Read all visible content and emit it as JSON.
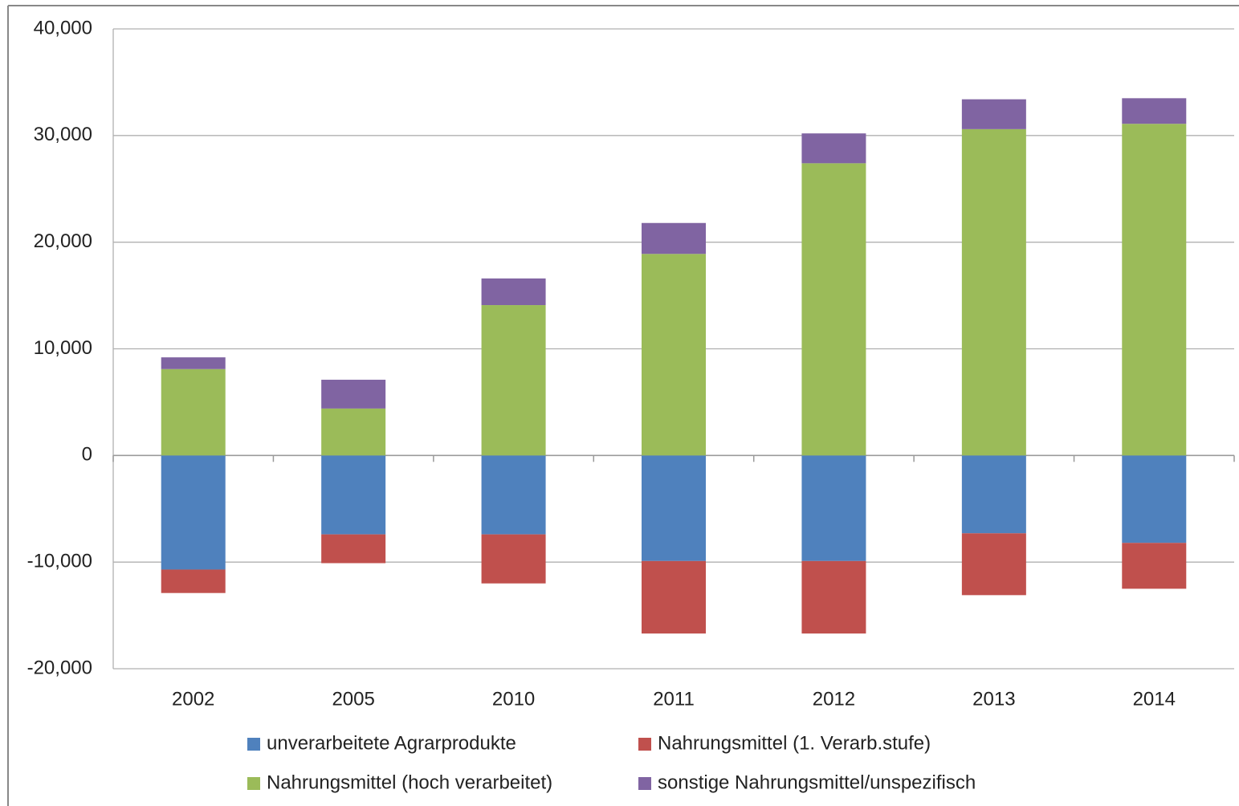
{
  "chart_data": {
    "type": "stacked_bar",
    "categories": [
      "2002",
      "2005",
      "2010",
      "2011",
      "2012",
      "2013",
      "2014"
    ],
    "series": [
      {
        "name": "unverarbeitete Agrarprodukte",
        "color": "#4f81bd",
        "values": [
          -10700,
          -7400,
          -7400,
          -9900,
          -9900,
          -7300,
          -8200
        ]
      },
      {
        "name": "Nahrungsmittel (1. Verarb.stufe)",
        "color": "#c0504d",
        "values": [
          -2200,
          -2700,
          -4600,
          -6800,
          -6800,
          -5800,
          -4300
        ]
      },
      {
        "name": "Nahrungsmittel (hoch verarbeitet)",
        "color": "#9bbb59",
        "values": [
          8100,
          4400,
          14100,
          18900,
          27400,
          30600,
          31100
        ]
      },
      {
        "name": "sonstige Nahrungsmittel/unspezifisch",
        "color": "#8064a2",
        "values": [
          1100,
          2700,
          2500,
          2900,
          2800,
          2800,
          2400
        ]
      }
    ],
    "ylim": [
      -20000,
      40000
    ],
    "yticks": [
      {
        "value": -20000,
        "label": "-20,000"
      },
      {
        "value": -10000,
        "label": "-10,000"
      },
      0,
      {
        "value": 10000,
        "label": "10,000"
      },
      {
        "value": 20000,
        "label": "20,000"
      },
      {
        "value": 30000,
        "label": "30,000"
      },
      {
        "value": 40000,
        "label": "40,000"
      }
    ],
    "grid": true
  }
}
